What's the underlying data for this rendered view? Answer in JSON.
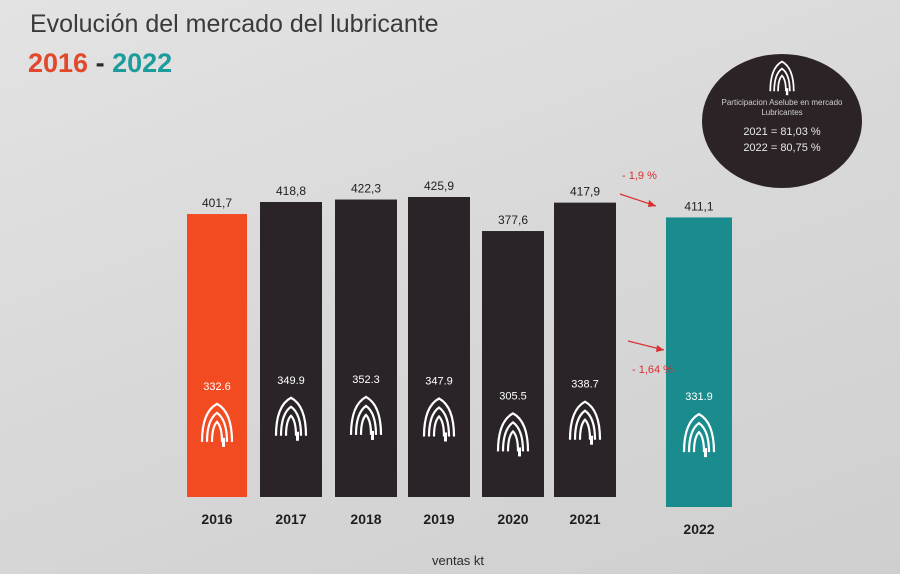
{
  "header": {
    "title": "Evolución del mercado del lubricante",
    "year_start": "2016",
    "year_sep": " - ",
    "year_end": "2022"
  },
  "colors": {
    "orange": "#f24a21",
    "dark": "#2a2428",
    "teal": "#1b8c8e",
    "arrow_red": "#d9302f"
  },
  "chart_data": {
    "type": "bar",
    "categories": [
      "2016",
      "2017",
      "2018",
      "2019",
      "2020",
      "2021",
      "2022"
    ],
    "series": [
      {
        "values": [
          401.7,
          418.8,
          422.3,
          425.9,
          377.6,
          417.9,
          411.1
        ]
      },
      {
        "values": [
          332.6,
          349.9,
          352.3,
          347.9,
          305.5,
          338.7,
          331.9
        ]
      }
    ],
    "top_labels": [
      "401,7",
      "418,8",
      "422,3",
      "425,9",
      "377,6",
      "417,9",
      "411,1"
    ],
    "inner_labels": [
      "332.6",
      "349.9",
      "352.3",
      "347.9",
      "305.5",
      "338.7",
      "331.9"
    ],
    "bar_colors": [
      "orange",
      "dark",
      "dark",
      "dark",
      "dark",
      "dark",
      "teal"
    ],
    "annotations": [
      "- 1,9 %",
      "- 1,64 %"
    ],
    "xlabel": "ventas kt",
    "ylabel": "",
    "grid": false,
    "legend": "none"
  },
  "participation": {
    "label": "Participacion Aselube en mercado Lubricantes",
    "line_2021": "2021 = 81,03 %",
    "line_2022": "2022 = 80,75 %",
    "logo_icon": "aselube-logo-icon"
  }
}
